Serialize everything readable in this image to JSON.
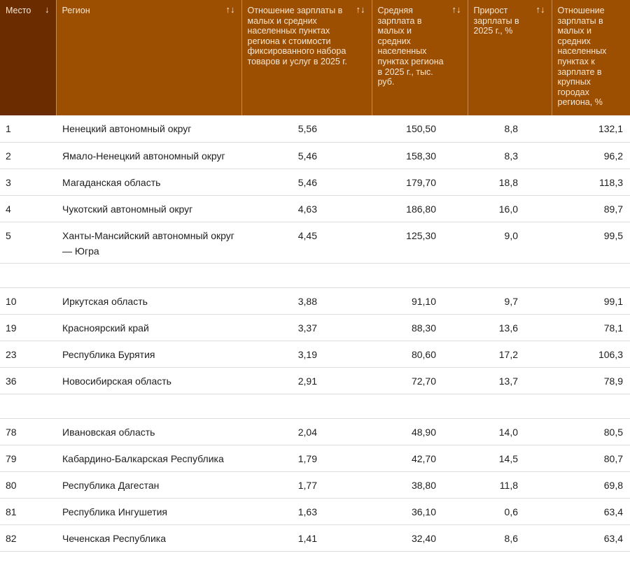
{
  "colors": {
    "header": "#9c4f00",
    "header_first": "#6b2c00"
  },
  "columns": [
    {
      "label": "Место",
      "sort_icon": "↓"
    },
    {
      "label": "Регион",
      "sort_icon": "↑↓"
    },
    {
      "label": "Отношение зарплаты в малых и средних населенных пунктах региона к стоимости фиксированного набора товаров и услуг в 2025 г.",
      "sort_icon": "↑↓"
    },
    {
      "label": "Средняя зарплата в малых и средних населенных пунктах региона в 2025 г., тыс. руб.",
      "sort_icon": "↑↓"
    },
    {
      "label": "Прирост зарплаты в 2025 г., %",
      "sort_icon": "↑↓"
    },
    {
      "label": "Отношение зарплаты в малых и средних населенных пунктах к зарплате в крупных городах региона, %"
    }
  ],
  "rows": [
    [
      "1",
      "Ненецкий автономный округ",
      "5,56",
      "150,50",
      "8,8",
      "132,1"
    ],
    [
      "2",
      "Ямало-Ненецкий автономный округ",
      "5,46",
      "158,30",
      "8,3",
      "96,2"
    ],
    [
      "3",
      "Магаданская область",
      "5,46",
      "179,70",
      "18,8",
      "118,3"
    ],
    [
      "4",
      "Чукотский автономный округ",
      "4,63",
      "186,80",
      "16,0",
      "89,7"
    ],
    [
      "5",
      "Ханты-Мансийский автономный округ — Югра",
      "4,45",
      "125,30",
      "9,0",
      "99,5"
    ],
    null,
    [
      "10",
      "Иркутская область",
      "3,88",
      "91,10",
      "9,7",
      "99,1"
    ],
    [
      "19",
      "Красноярский край",
      "3,37",
      "88,30",
      "13,6",
      "78,1"
    ],
    [
      "23",
      "Республика Бурятия",
      "3,19",
      "80,60",
      "17,2",
      "106,3"
    ],
    [
      "36",
      "Новосибирская область",
      "2,91",
      "72,70",
      "13,7",
      "78,9"
    ],
    null,
    [
      "78",
      "Ивановская область",
      "2,04",
      "48,90",
      "14,0",
      "80,5"
    ],
    [
      "79",
      "Кабардино-Балкарская Республика",
      "1,79",
      "42,70",
      "14,5",
      "80,7"
    ],
    [
      "80",
      "Республика Дагестан",
      "1,77",
      "38,80",
      "11,8",
      "69,8"
    ],
    [
      "81",
      "Республика Ингушетия",
      "1,63",
      "36,10",
      "0,6",
      "63,4"
    ],
    [
      "82",
      "Чеченская Республика",
      "1,41",
      "32,40",
      "8,6",
      "63,4"
    ]
  ]
}
